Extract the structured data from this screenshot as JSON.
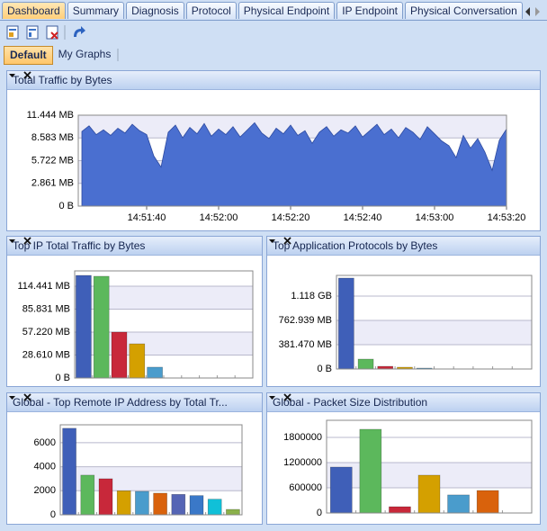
{
  "tabs": [
    "Dashboard",
    "Summary",
    "Diagnosis",
    "Protocol",
    "Physical Endpoint",
    "IP Endpoint",
    "Physical Conversation"
  ],
  "view_tabs": [
    "Default",
    "My Graphs"
  ],
  "chart_data": [
    {
      "type": "area",
      "title": "Total Traffic by Bytes",
      "color": "#4a6fd0",
      "x": [
        "14:51:22",
        "14:51:24",
        "14:51:26",
        "14:51:28",
        "14:51:30",
        "14:51:32",
        "14:51:34",
        "14:51:36",
        "14:51:38",
        "14:51:40",
        "14:51:42",
        "14:51:44",
        "14:51:46",
        "14:51:48",
        "14:51:50",
        "14:51:52",
        "14:51:54",
        "14:51:56",
        "14:51:58",
        "14:52:00",
        "14:52:02",
        "14:52:04",
        "14:52:06",
        "14:52:08",
        "14:52:10",
        "14:52:12",
        "14:52:14",
        "14:52:16",
        "14:52:18",
        "14:52:20",
        "14:52:22",
        "14:52:24",
        "14:52:26",
        "14:52:28",
        "14:52:30",
        "14:52:32",
        "14:52:34",
        "14:52:36",
        "14:52:38",
        "14:52:40",
        "14:52:42",
        "14:52:44",
        "14:52:46",
        "14:52:48",
        "14:52:50",
        "14:52:52",
        "14:52:54",
        "14:52:56",
        "14:52:58",
        "14:53:00",
        "14:53:02",
        "14:53:04",
        "14:53:06",
        "14:53:08",
        "14:53:10",
        "14:53:12",
        "14:53:14",
        "14:53:16",
        "14:53:18",
        "14:53:20"
      ],
      "values": [
        9.4,
        10.1,
        9.0,
        9.6,
        8.9,
        9.8,
        9.2,
        10.3,
        9.5,
        9.0,
        6.3,
        4.9,
        9.3,
        10.2,
        8.6,
        9.9,
        9.1,
        10.4,
        8.8,
        9.7,
        9.0,
        10.0,
        8.7,
        9.6,
        10.5,
        9.2,
        8.5,
        9.8,
        9.1,
        10.2,
        8.9,
        9.5,
        7.9,
        9.3,
        10.0,
        8.8,
        9.6,
        9.2,
        10.1,
        8.7,
        9.5,
        10.3,
        9.0,
        9.7,
        8.6,
        9.9,
        9.3,
        8.4,
        10.0,
        9.1,
        8.2,
        7.6,
        6.1,
        8.9,
        7.3,
        8.5,
        6.8,
        4.5,
        8.3,
        9.7
      ],
      "xlim": [
        "14:51:21",
        "14:53:20"
      ],
      "xticks": [
        "14:51:40",
        "14:52:00",
        "14:52:20",
        "14:52:40",
        "14:53:00",
        "14:53:20"
      ],
      "ylim": [
        0,
        11.444
      ],
      "yticks": [
        {
          "value": 0,
          "label": "0 B"
        },
        {
          "value": 2.861,
          "label": "2.861 MB"
        },
        {
          "value": 5.722,
          "label": "5.722 MB"
        },
        {
          "value": 8.583,
          "label": "8.583 MB"
        },
        {
          "value": 11.444,
          "label": "11.444 MB"
        }
      ],
      "grid": true
    },
    {
      "type": "bar",
      "title": "Top IP Total Traffic by Bytes",
      "values": [
        127.9,
        126.8,
        57.2,
        42.6,
        13.5
      ],
      "colors": [
        "#3f5fb8",
        "#5cb85c",
        "#c8283a",
        "#d4a000",
        "#4a9ccc"
      ],
      "ylim": [
        0,
        133.5
      ],
      "yticks": [
        {
          "value": 0,
          "label": "0 B"
        },
        {
          "value": 28.61,
          "label": "28.610 MB"
        },
        {
          "value": 57.22,
          "label": "57.220 MB"
        },
        {
          "value": 85.831,
          "label": "85.831 MB"
        },
        {
          "value": 114.441,
          "label": "114.441 MB"
        }
      ],
      "grid": true
    },
    {
      "type": "bar",
      "title": "Top Application Protocols by Bytes",
      "values": [
        1427,
        155,
        42,
        28,
        14
      ],
      "colors": [
        "#3f5fb8",
        "#5cb85c",
        "#c8283a",
        "#d4a000",
        "#4a9ccc"
      ],
      "ylim": [
        0,
        1469
      ],
      "yticks": [
        {
          "value": 0,
          "label": "0 B"
        },
        {
          "value": 381.47,
          "label": "381.470 MB"
        },
        {
          "value": 762.939,
          "label": "762.939 MB"
        },
        {
          "value": 1144.41,
          "label": "1.118 GB"
        }
      ],
      "grid": true
    },
    {
      "type": "bar",
      "title": "Global - Top Remote IP Address by Total Tr...",
      "values": [
        7200,
        3300,
        3000,
        2000,
        1950,
        1800,
        1700,
        1600,
        1300,
        450
      ],
      "colors": [
        "#3f5fb8",
        "#5cb85c",
        "#c8283a",
        "#d4a000",
        "#4a9ccc",
        "#d9620c",
        "#5565b5",
        "#3a78c8",
        "#10c0d8",
        "#8ab04a"
      ],
      "ylim": [
        0,
        7490
      ],
      "yticks": [
        0,
        2000,
        4000,
        6000
      ],
      "grid": true
    },
    {
      "type": "bar",
      "title": "Global - Packet Size Distribution",
      "values": [
        1093000,
        1993000,
        150000,
        900000,
        430000,
        536000
      ],
      "colors": [
        "#3f5fb8",
        "#5cb85c",
        "#c8283a",
        "#d4a000",
        "#4a9ccc",
        "#d9620c"
      ],
      "ylim": [
        0,
        2207000
      ],
      "yticks": [
        0,
        600000,
        1200000,
        1800000
      ],
      "grid": true
    }
  ]
}
